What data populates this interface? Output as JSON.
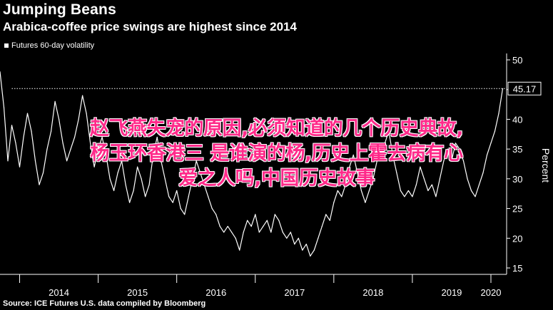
{
  "header": {
    "title": "Jumping Beans",
    "subtitle": "Arabica-coffee price swings are highest since 2014"
  },
  "legend": {
    "label": "Futures 60-day volatility"
  },
  "source": "Source: ICE Futures U.S. data compiled by Bloomberg",
  "overlay_text": {
    "line1": "赵飞燕失宠的原因,必须知道的几个历史典故,",
    "line2": "杨玉环香港三 是谁演的杨,历史上霍去病有心",
    "line3": "爱之人吗,中国历史故事"
  },
  "colors": {
    "background": "#000000",
    "series": "#ffffff",
    "overlay": "#ff2a8a"
  },
  "chart_data": {
    "type": "line",
    "title": "Jumping Beans",
    "subtitle": "Arabica-coffee price swings are highest since 2014",
    "ylabel": "Percent",
    "ylim": [
      15,
      50
    ],
    "yticks": [
      15,
      20,
      25,
      30,
      35,
      40,
      45,
      50
    ],
    "xlim": [
      2013.75,
      2020.2
    ],
    "xticks": [
      "2014",
      "2015",
      "2016",
      "2017",
      "2018",
      "2019",
      "2020"
    ],
    "grid": false,
    "legend_position": "top-left",
    "last_value_label": "45.17",
    "reference_line": 45.17,
    "series": [
      {
        "name": "Futures 60-day volatility",
        "x": [
          2013.75,
          2013.8,
          2013.85,
          2013.9,
          2013.95,
          2014.0,
          2014.05,
          2014.1,
          2014.15,
          2014.2,
          2014.25,
          2014.3,
          2014.35,
          2014.4,
          2014.45,
          2014.5,
          2014.55,
          2014.6,
          2014.65,
          2014.7,
          2014.75,
          2014.8,
          2014.85,
          2014.9,
          2014.95,
          2015.0,
          2015.05,
          2015.1,
          2015.15,
          2015.2,
          2015.25,
          2015.3,
          2015.35,
          2015.4,
          2015.45,
          2015.5,
          2015.55,
          2015.6,
          2015.65,
          2015.7,
          2015.75,
          2015.8,
          2015.85,
          2015.9,
          2015.95,
          2016.0,
          2016.05,
          2016.1,
          2016.15,
          2016.2,
          2016.25,
          2016.3,
          2016.35,
          2016.4,
          2016.45,
          2016.5,
          2016.55,
          2016.6,
          2016.65,
          2016.7,
          2016.75,
          2016.8,
          2016.85,
          2016.9,
          2016.95,
          2017.0,
          2017.05,
          2017.1,
          2017.15,
          2017.2,
          2017.25,
          2017.3,
          2017.35,
          2017.4,
          2017.45,
          2017.5,
          2017.55,
          2017.6,
          2017.65,
          2017.7,
          2017.75,
          2017.8,
          2017.85,
          2017.9,
          2017.95,
          2018.0,
          2018.05,
          2018.1,
          2018.15,
          2018.2,
          2018.25,
          2018.3,
          2018.35,
          2018.4,
          2018.45,
          2018.5,
          2018.55,
          2018.6,
          2018.65,
          2018.7,
          2018.75,
          2018.8,
          2018.85,
          2018.9,
          2018.95,
          2019.0,
          2019.05,
          2019.1,
          2019.15,
          2019.2,
          2019.25,
          2019.3,
          2019.35,
          2019.4,
          2019.45,
          2019.5,
          2019.55,
          2019.6,
          2019.65,
          2019.7,
          2019.75,
          2019.8,
          2019.85,
          2019.9,
          2019.95,
          2020.0,
          2020.05,
          2020.1,
          2020.15
        ],
        "y": [
          48,
          42,
          33,
          39,
          36,
          32,
          37,
          41,
          38,
          33,
          29,
          31,
          35,
          38,
          43,
          40,
          36,
          33,
          35,
          37,
          40,
          44,
          41,
          36,
          32,
          35,
          37,
          34,
          30,
          28,
          31,
          33,
          29,
          26,
          28,
          32,
          30,
          27,
          29,
          34,
          37,
          33,
          30,
          27,
          26,
          28,
          25,
          24,
          27,
          30,
          33,
          31,
          29,
          27,
          25,
          24,
          22,
          21,
          22,
          21,
          20,
          18,
          21,
          23,
          22,
          24,
          21,
          22,
          23,
          21,
          24,
          23,
          21,
          20,
          21,
          19,
          20,
          18,
          19,
          17,
          18,
          20,
          22,
          24,
          23,
          26,
          28,
          27,
          29,
          32,
          34,
          31,
          28,
          26,
          28,
          30,
          33,
          35,
          36,
          38,
          34,
          31,
          28,
          27,
          28,
          27,
          29,
          32,
          30,
          28,
          29,
          27,
          30,
          33,
          35,
          33,
          36,
          35,
          33,
          30,
          28,
          27,
          29,
          31,
          34,
          36,
          38,
          41,
          45.17
        ]
      }
    ]
  }
}
